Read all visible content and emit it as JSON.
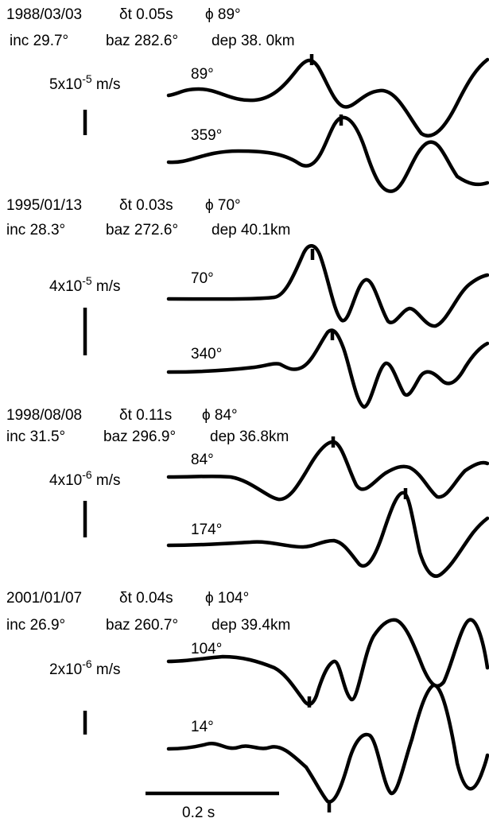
{
  "events": [
    {
      "date": "1988/03/03",
      "dt": "δt 0.05s",
      "phi": "ϕ 89°",
      "inc": "inc 29.7°",
      "baz": "baz 282.6°",
      "dep": "dep 38. 0km",
      "scale_label": "5x10",
      "scale_exp": "-5",
      "scale_unit": " m/s",
      "trace1_label": "89°",
      "trace2_label": "359°"
    },
    {
      "date": "1995/01/13",
      "dt": "δt 0.03s",
      "phi": "ϕ 70°",
      "inc": "inc 28.3°",
      "baz": "baz 272.6°",
      "dep": "dep 40.1km",
      "scale_label": "4x10",
      "scale_exp": "-5",
      "scale_unit": " m/s",
      "trace1_label": "70°",
      "trace2_label": "340°"
    },
    {
      "date": "1998/08/08",
      "dt": "δt 0.11s",
      "phi": "ϕ 84°",
      "inc": "inc 31.5°",
      "baz": "baz 296.9°",
      "dep": "dep 36.8km",
      "scale_label": "4x10",
      "scale_exp": "-6",
      "scale_unit": " m/s",
      "trace1_label": "84°",
      "trace2_label": "174°"
    },
    {
      "date": "2001/01/07",
      "dt": "δt 0.04s",
      "phi": "ϕ 104°",
      "inc": "inc 26.9°",
      "baz": "baz 260.7°",
      "dep": "dep 39.4km",
      "scale_label": "2x10",
      "scale_exp": "-6",
      "scale_unit": " m/s",
      "trace1_label": "104°",
      "trace2_label": "14°"
    }
  ],
  "time_scale": "0.2 s"
}
